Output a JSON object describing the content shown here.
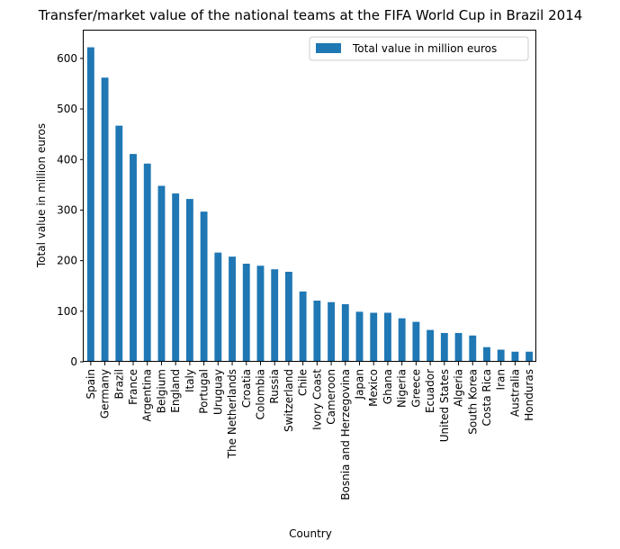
{
  "chart_data": {
    "type": "bar",
    "title": "Transfer/market value of the national teams at the FIFA World Cup in Brazil 2014",
    "xlabel": "Country",
    "ylabel": "Total value in million euros",
    "categories": [
      "Spain",
      "Germany",
      "Brazil",
      "France",
      "Argentina",
      "Belgium",
      "England",
      "Italy",
      "Portugal",
      "Uruguay",
      "The Netherlands",
      "Croatia",
      "Colombia",
      "Russia",
      "Switzerland",
      "Chile",
      "Ivory Coast",
      "Cameroon",
      "Bosnia and Herzegovina",
      "Japan",
      "Mexico",
      "Ghana",
      "Nigeria",
      "Greece",
      "Ecuador",
      "United States",
      "Algeria",
      "South Korea",
      "Costa Rica",
      "Iran",
      "Australia",
      "Honduras"
    ],
    "series": [
      {
        "name": "Total value in million euros",
        "color": "#1f77b4",
        "values": [
          622,
          562,
          467,
          411,
          392,
          348,
          333,
          322,
          297,
          216,
          208,
          194,
          190,
          183,
          178,
          139,
          121,
          118,
          114,
          99,
          97,
          97,
          86,
          79,
          63,
          57,
          57,
          52,
          29,
          24,
          20,
          20
        ]
      }
    ],
    "ylim": [
      0,
      655
    ],
    "yticks": [
      0,
      100,
      200,
      300,
      400,
      500,
      600
    ],
    "legend": {
      "position": "top-right",
      "entries": [
        "Total value in million euros"
      ]
    },
    "grid": false
  }
}
